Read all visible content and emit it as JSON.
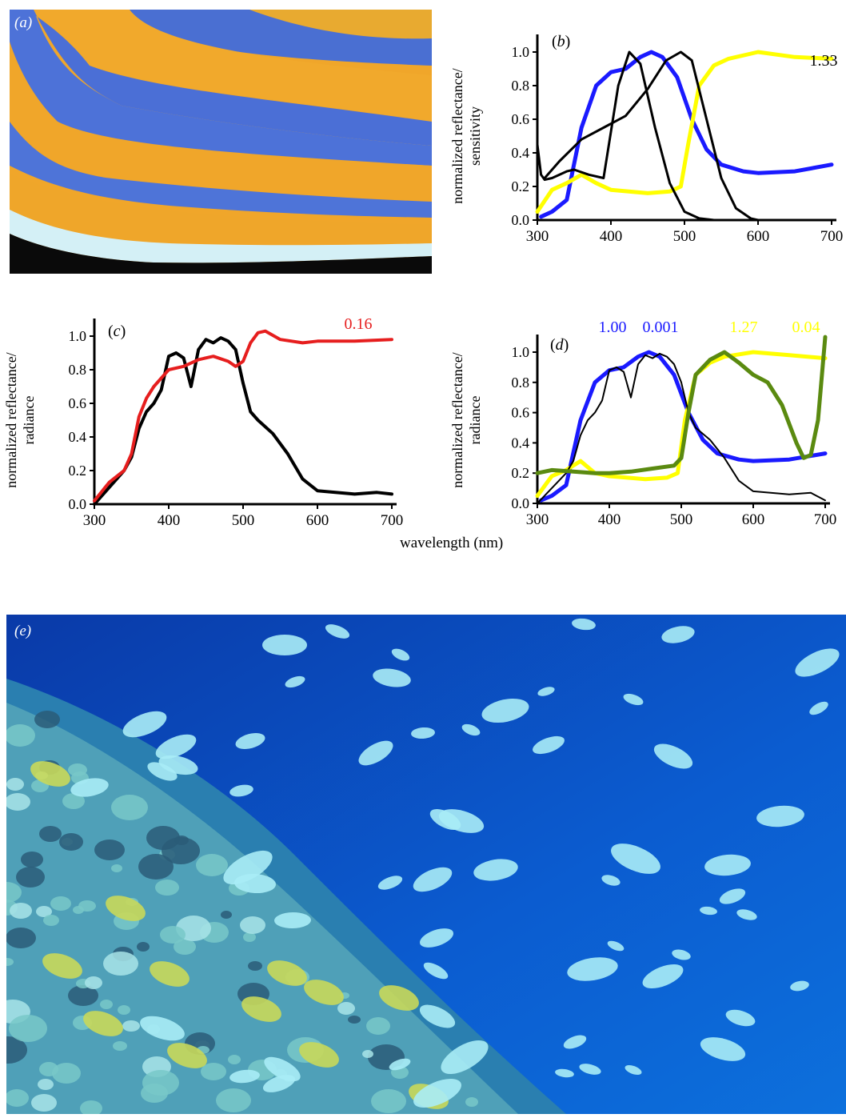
{
  "shared": {
    "xlabel": "wavelength (nm)"
  },
  "panels": {
    "a": {
      "label": "(a)",
      "description_colors": {
        "stripe_orange": "#f2a92a",
        "stripe_blue": "#4c70d6",
        "edge_white": "#d6f2f6"
      }
    },
    "e": {
      "label": "(e)",
      "colors": {
        "water_dark": "#0a36a8",
        "water_mid": "#0b62d4",
        "fish": "#a9ecf6",
        "coral": "#78c8c8",
        "yellow_fish": "#c8d85a"
      }
    }
  },
  "chart_data": [
    {
      "id": "b",
      "panel_label": "(b)",
      "type": "line",
      "ylabel": "normalized reflectance/ sensitivity",
      "xlabel": "",
      "xlim": [
        300,
        700
      ],
      "ylim": [
        0,
        1.0
      ],
      "xticks": [
        "300",
        "400",
        "500",
        "600",
        "700"
      ],
      "yticks": [
        "0.0",
        "0.2",
        "0.4",
        "0.6",
        "0.8",
        "1.0"
      ],
      "annotations": [
        {
          "text": "1.33",
          "color": "#000000"
        }
      ],
      "series": [
        {
          "color": "#1a1aff",
          "width": 5,
          "x": [
            305,
            320,
            340,
            360,
            380,
            400,
            420,
            440,
            455,
            470,
            490,
            510,
            530,
            550,
            580,
            600,
            650,
            700
          ],
          "y": [
            0.02,
            0.05,
            0.12,
            0.55,
            0.8,
            0.88,
            0.9,
            0.97,
            1.0,
            0.97,
            0.85,
            0.6,
            0.42,
            0.33,
            0.29,
            0.28,
            0.29,
            0.33
          ]
        },
        {
          "color": "#ffff00",
          "width": 5,
          "x": [
            300,
            320,
            340,
            360,
            380,
            400,
            450,
            480,
            495,
            505,
            520,
            540,
            560,
            600,
            650,
            700
          ],
          "y": [
            0.05,
            0.18,
            0.22,
            0.27,
            0.22,
            0.18,
            0.16,
            0.17,
            0.2,
            0.45,
            0.8,
            0.92,
            0.96,
            1.0,
            0.97,
            0.96
          ]
        },
        {
          "color": "#000000",
          "width": 3,
          "x": [
            300,
            305,
            310,
            320,
            340,
            350,
            370,
            390,
            410,
            425,
            440,
            460,
            480,
            500,
            520,
            540,
            560,
            580
          ],
          "y": [
            0.45,
            0.27,
            0.24,
            0.25,
            0.29,
            0.3,
            0.27,
            0.25,
            0.8,
            1.0,
            0.93,
            0.55,
            0.22,
            0.05,
            0.01,
            0.0,
            0.0,
            0.0
          ]
        },
        {
          "color": "#000000",
          "width": 3,
          "x": [
            310,
            330,
            360,
            390,
            420,
            450,
            475,
            495,
            510,
            530,
            550,
            570,
            590,
            600
          ],
          "y": [
            0.25,
            0.35,
            0.48,
            0.55,
            0.62,
            0.78,
            0.95,
            1.0,
            0.95,
            0.6,
            0.25,
            0.07,
            0.01,
            0.0
          ]
        }
      ]
    },
    {
      "id": "c",
      "panel_label": "(c)",
      "type": "line",
      "ylabel": "normalized reflectance/ radiance",
      "xlabel": "",
      "xlim": [
        300,
        700
      ],
      "ylim": [
        0,
        1.0
      ],
      "xticks": [
        "300",
        "400",
        "500",
        "600",
        "700"
      ],
      "yticks": [
        "0.0",
        "0.2",
        "0.4",
        "0.6",
        "0.8",
        "1.0"
      ],
      "annotations": [
        {
          "text": "0.16",
          "color": "#e61e1e"
        }
      ],
      "series": [
        {
          "color": "#000000",
          "width": 4,
          "x": [
            300,
            320,
            340,
            350,
            360,
            370,
            380,
            390,
            400,
            410,
            420,
            430,
            440,
            450,
            460,
            470,
            480,
            490,
            500,
            510,
            520,
            540,
            560,
            580,
            600,
            650,
            680,
            700
          ],
          "y": [
            0.0,
            0.1,
            0.2,
            0.28,
            0.45,
            0.55,
            0.6,
            0.68,
            0.88,
            0.9,
            0.87,
            0.7,
            0.92,
            0.98,
            0.96,
            0.99,
            0.97,
            0.92,
            0.72,
            0.55,
            0.5,
            0.42,
            0.3,
            0.15,
            0.08,
            0.06,
            0.07,
            0.06
          ]
        },
        {
          "color": "#e61e1e",
          "width": 4,
          "x": [
            300,
            320,
            340,
            350,
            360,
            370,
            380,
            400,
            420,
            440,
            460,
            480,
            490,
            500,
            510,
            520,
            530,
            550,
            580,
            600,
            650,
            700
          ],
          "y": [
            0.02,
            0.13,
            0.2,
            0.3,
            0.52,
            0.63,
            0.7,
            0.8,
            0.82,
            0.86,
            0.88,
            0.85,
            0.82,
            0.85,
            0.96,
            1.02,
            1.03,
            0.98,
            0.96,
            0.97,
            0.97,
            0.98
          ]
        }
      ]
    },
    {
      "id": "d",
      "panel_label": "(d)",
      "type": "line",
      "ylabel": "normalized reflectance/ radiance",
      "xlabel": "",
      "xlim": [
        300,
        700
      ],
      "ylim": [
        0,
        1.0
      ],
      "xticks": [
        "300",
        "400",
        "500",
        "600",
        "700"
      ],
      "yticks": [
        "0.0",
        "0.2",
        "0.4",
        "0.6",
        "0.8",
        "1.0"
      ],
      "annotations": [
        {
          "text": "1.00",
          "color": "#1a1aff"
        },
        {
          "text": "0.001",
          "color": "#1a1aff"
        },
        {
          "text": "1.27",
          "color": "#ffff00"
        },
        {
          "text": "0.04",
          "color": "#ffff00"
        }
      ],
      "series": [
        {
          "color": "#1a1aff",
          "width": 5,
          "x": [
            305,
            320,
            340,
            360,
            380,
            400,
            420,
            440,
            455,
            470,
            490,
            510,
            530,
            550,
            580,
            600,
            650,
            700
          ],
          "y": [
            0.02,
            0.05,
            0.12,
            0.55,
            0.8,
            0.88,
            0.9,
            0.97,
            1.0,
            0.97,
            0.85,
            0.6,
            0.42,
            0.33,
            0.29,
            0.28,
            0.29,
            0.33
          ]
        },
        {
          "color": "#ffff00",
          "width": 5,
          "x": [
            300,
            320,
            340,
            360,
            380,
            400,
            450,
            480,
            495,
            505,
            520,
            540,
            560,
            600,
            650,
            700
          ],
          "y": [
            0.05,
            0.18,
            0.22,
            0.28,
            0.2,
            0.18,
            0.16,
            0.17,
            0.2,
            0.55,
            0.85,
            0.93,
            0.97,
            1.0,
            0.98,
            0.96
          ]
        },
        {
          "color": "#000000",
          "width": 2,
          "x": [
            300,
            320,
            340,
            350,
            360,
            370,
            380,
            390,
            400,
            410,
            420,
            430,
            440,
            450,
            460,
            470,
            480,
            490,
            500,
            510,
            520,
            540,
            560,
            580,
            600,
            650,
            680,
            700
          ],
          "y": [
            0.0,
            0.1,
            0.2,
            0.28,
            0.45,
            0.55,
            0.6,
            0.68,
            0.88,
            0.9,
            0.87,
            0.7,
            0.92,
            0.98,
            0.96,
            0.99,
            0.97,
            0.92,
            0.8,
            0.6,
            0.5,
            0.42,
            0.3,
            0.15,
            0.08,
            0.06,
            0.07,
            0.02
          ]
        },
        {
          "color": "#5a8a10",
          "width": 5,
          "x": [
            300,
            320,
            350,
            380,
            400,
            430,
            460,
            490,
            500,
            510,
            520,
            540,
            560,
            580,
            600,
            620,
            640,
            660,
            670,
            680,
            690,
            700
          ],
          "y": [
            0.2,
            0.22,
            0.21,
            0.2,
            0.2,
            0.21,
            0.23,
            0.25,
            0.3,
            0.6,
            0.85,
            0.95,
            1.0,
            0.93,
            0.85,
            0.8,
            0.65,
            0.4,
            0.3,
            0.32,
            0.55,
            1.1
          ]
        }
      ]
    }
  ]
}
